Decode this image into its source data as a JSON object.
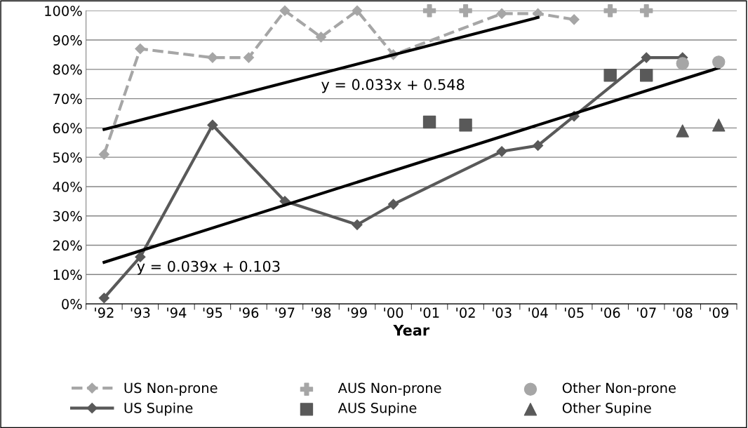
{
  "chart_data": {
    "type": "line",
    "xlabel": "Year",
    "categories": [
      "'92",
      "'93",
      "'94",
      "'95",
      "'96",
      "'97",
      "'98",
      "'99",
      "'00",
      "'01",
      "'02",
      "'03",
      "'04",
      "'05",
      "'06",
      "'07",
      "'08",
      "'09"
    ],
    "ylim": [
      0,
      100
    ],
    "yticks": [
      {
        "value": 0,
        "label": "0%"
      },
      {
        "value": 10,
        "label": "10%"
      },
      {
        "value": 20,
        "label": "20%"
      },
      {
        "value": 30,
        "label": "30%"
      },
      {
        "value": 40,
        "label": "40%"
      },
      {
        "value": 50,
        "label": "50%"
      },
      {
        "value": 60,
        "label": "60%"
      },
      {
        "value": 70,
        "label": "70%"
      },
      {
        "value": 80,
        "label": "80%"
      },
      {
        "value": 90,
        "label": "90%"
      },
      {
        "value": 100,
        "label": "100%"
      }
    ],
    "grid": "y",
    "legend": "bottom",
    "series": [
      {
        "name": "US Non-prone",
        "color": "#a6a6a6",
        "marker": "diamond",
        "line_style": "dashed",
        "values": [
          51,
          87,
          null,
          84,
          84,
          100,
          91,
          100,
          85,
          null,
          null,
          99,
          99,
          97,
          null,
          null,
          null,
          null
        ]
      },
      {
        "name": "US Supine",
        "color": "#595959",
        "marker": "diamond",
        "line_style": "solid",
        "values": [
          2,
          16,
          null,
          61,
          null,
          35,
          null,
          27,
          34,
          null,
          null,
          52,
          54,
          64,
          null,
          84,
          84,
          null
        ]
      },
      {
        "name": "AUS Non-prone",
        "type": "scatter",
        "color": "#a6a6a6",
        "marker": "cross",
        "values": [
          null,
          null,
          null,
          null,
          null,
          null,
          null,
          null,
          null,
          100,
          100,
          null,
          null,
          null,
          100,
          100,
          null,
          null
        ]
      },
      {
        "name": "AUS Supine",
        "type": "scatter",
        "color": "#595959",
        "marker": "square",
        "values": [
          null,
          null,
          null,
          null,
          null,
          null,
          null,
          null,
          null,
          62,
          61,
          null,
          null,
          null,
          78,
          78,
          null,
          null
        ]
      },
      {
        "name": "Other Non-prone",
        "type": "scatter",
        "color": "#a6a6a6",
        "marker": "circle",
        "values": [
          null,
          null,
          null,
          null,
          null,
          null,
          null,
          null,
          null,
          null,
          null,
          null,
          null,
          null,
          null,
          null,
          82,
          82.5
        ]
      },
      {
        "name": "Other Supine",
        "type": "scatter",
        "color": "#595959",
        "marker": "triangle",
        "values": [
          null,
          null,
          null,
          null,
          null,
          null,
          null,
          null,
          null,
          null,
          null,
          null,
          null,
          null,
          null,
          null,
          59,
          61
        ]
      },
      {
        "color": "#000000",
        "marker": "none",
        "line_style": "solid",
        "x": [
          "'92",
          "'04"
        ],
        "values": [
          59.5,
          97.7
        ]
      },
      {
        "color": "#000000",
        "marker": "none",
        "line_style": "solid",
        "x": [
          "'92",
          "'09"
        ],
        "values": [
          14.2,
          80.5
        ]
      }
    ],
    "annotations": [
      "y = 0.033x + 0.548",
      "y = 0.039x + 0.103"
    ]
  }
}
